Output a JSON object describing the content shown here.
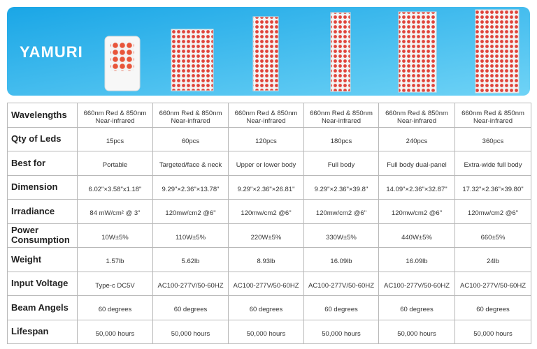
{
  "brand": "YAMURI",
  "table": {
    "rows": [
      {
        "label": [
          "Wavelengths"
        ],
        "cells": [
          [
            "660nm Red & 850nm",
            "Near-infrared"
          ],
          [
            "660nm Red & 850nm",
            "Near-infrared"
          ],
          [
            "660nm Red & 850nm",
            "Near-infrared"
          ],
          [
            "660nm Red & 850nm",
            "Near-infrared"
          ],
          [
            "660nm Red & 850nm",
            "Near-infrared"
          ],
          [
            "660nm Red & 850nm",
            "Near-infrared"
          ]
        ]
      },
      {
        "label": [
          "Qty of Leds"
        ],
        "cells": [
          [
            "15pcs"
          ],
          [
            "60pcs"
          ],
          [
            "120pcs"
          ],
          [
            "180pcs"
          ],
          [
            "240pcs"
          ],
          [
            "360pcs"
          ]
        ]
      },
      {
        "label": [
          "Best for"
        ],
        "cells": [
          [
            "Portable"
          ],
          [
            "Targeted/face & neck"
          ],
          [
            "Upper or lower body"
          ],
          [
            "Full body"
          ],
          [
            "Full body dual-panel"
          ],
          [
            "Extra-wide full body"
          ]
        ]
      },
      {
        "label": [
          "Dimension"
        ],
        "cells": [
          [
            "6.02\"×3.58\"x1.18\""
          ],
          [
            "9.29\"×2.36\"×13.78\""
          ],
          [
            "9.29\"×2.36\"×26.81\""
          ],
          [
            "9.29\"×2.36\"×39.8\""
          ],
          [
            "14.09\"×2.36\"×32.87\""
          ],
          [
            "17.32\"×2.36\"×39.80\""
          ]
        ]
      },
      {
        "label": [
          "Irradiance"
        ],
        "cells": [
          [
            "84 mW/cm² @ 3\""
          ],
          [
            "120mw/cm2 @6\""
          ],
          [
            "120mw/cm2 @6\""
          ],
          [
            "120mw/cm2 @6\""
          ],
          [
            "120mw/cm2 @6\""
          ],
          [
            "120mw/cm2 @6\""
          ]
        ]
      },
      {
        "label": [
          "Power",
          "Consumption"
        ],
        "cells": [
          [
            "10W±5%"
          ],
          [
            "110W±5%"
          ],
          [
            "220W±5%"
          ],
          [
            "330W±5%"
          ],
          [
            "440W±5%"
          ],
          [
            "660±5%"
          ]
        ]
      },
      {
        "label": [
          "Weight"
        ],
        "cells": [
          [
            "1.57lb"
          ],
          [
            "5.62lb"
          ],
          [
            "8.93lb"
          ],
          [
            "16.09lb"
          ],
          [
            "16.09lb"
          ],
          [
            "24lb"
          ]
        ]
      },
      {
        "label": [
          "Input Voltage"
        ],
        "cells": [
          [
            "Type-c  DC5V"
          ],
          [
            "AC100-277V/50-60HZ"
          ],
          [
            "AC100-277V/50-60HZ"
          ],
          [
            "AC100-277V/50-60HZ"
          ],
          [
            "AC100-277V/50-60HZ"
          ],
          [
            "AC100-277V/50-60HZ"
          ]
        ]
      },
      {
        "label": [
          "Beam Angels"
        ],
        "cells": [
          [
            "60 degrees"
          ],
          [
            "60 degrees"
          ],
          [
            "60 degrees"
          ],
          [
            "60 degrees"
          ],
          [
            "60 degrees"
          ],
          [
            "60 degrees"
          ]
        ]
      },
      {
        "label": [
          "Lifespan"
        ],
        "cells": [
          [
            "50,000 hours"
          ],
          [
            "50,000 hours"
          ],
          [
            "50,000 hours"
          ],
          [
            "50,000 hours"
          ],
          [
            "50,000 hours"
          ],
          [
            "50,000 hours"
          ]
        ]
      }
    ]
  }
}
